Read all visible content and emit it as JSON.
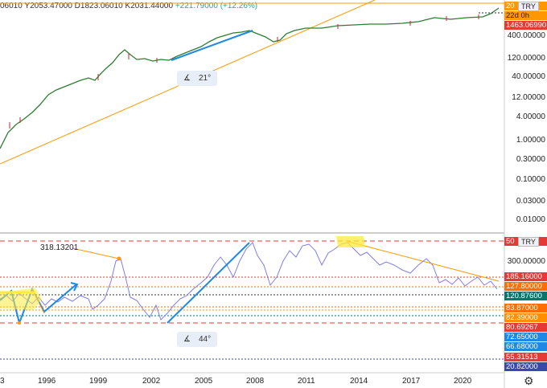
{
  "header": {
    "ohlc_text": "06010 Y2053.47000 D1823.06010 K2031.44000",
    "change_text": "+221.79000 (+12.26%)"
  },
  "price_axis": {
    "ticks": [
      "400.00000",
      "120.00000",
      "40.00000",
      "12.00000",
      "4.00000",
      "1.00000",
      "0.30000",
      "0.10000",
      "0.03000",
      "0.01000"
    ],
    "currency_button": "TRY",
    "top_badge": "20",
    "countdown_badge": "22d 0h",
    "last_price_badge": "1463.06990"
  },
  "indicator_axis": {
    "currency_button": "TRY",
    "top_badge": "50",
    "tick_300": "300.00000",
    "badges": [
      {
        "text": "185.16000",
        "color": "#e53935"
      },
      {
        "text": "127.80000",
        "color": "#ff6d00"
      },
      {
        "text": "120.87600",
        "color": "#00796b"
      },
      {
        "text": "83.87000",
        "color": "#ff6d00"
      },
      {
        "text": "82.39000",
        "color": "#ff8f00"
      },
      {
        "text": "80.69267",
        "color": "#e53935"
      },
      {
        "text": "72.65000",
        "color": "#1e88e5"
      },
      {
        "text": "66.68000",
        "color": "#1e88e5"
      },
      {
        "text": "55.31513",
        "color": "#e53935"
      },
      {
        "text": "20.82000",
        "color": "#3949ab"
      }
    ]
  },
  "annotations": {
    "peak_label": "318.13201",
    "angle_top": "21°",
    "angle_bottom": "44°"
  },
  "time_axis": [
    "3",
    "1996",
    "1999",
    "2002",
    "2005",
    "2008",
    "2011",
    "2014",
    "2017",
    "2020"
  ],
  "colors": {
    "price_line": "#2e7d32",
    "trend_orange": "#ff9800",
    "trend_blue": "#1e88e5",
    "indicator_line": "#7e7ee8",
    "highlight_yellow": "#ffeb3b"
  },
  "chart_data": {
    "type": "line",
    "series": [
      {
        "x": [
          1993,
          1996,
          1999,
          2001,
          2003,
          2006,
          2008,
          2009,
          2011,
          2014,
          2017,
          2020,
          2021
        ],
        "values": [
          0.15,
          0.8,
          20,
          120,
          180,
          250,
          440,
          380,
          420,
          520,
          540,
          560,
          1463.07
        ]
      }
    ],
    "indicator_series": {
      "x": [
        1993,
        1995,
        1997,
        1999,
        2000.5,
        2002,
        2003,
        2005,
        2007,
        2008,
        2009.5,
        2011,
        2013,
        2014,
        2017,
        2018,
        2020,
        2021
      ],
      "values": [
        130,
        95,
        140,
        110,
        318.13,
        95,
        80,
        150,
        260,
        400,
        160,
        360,
        420,
        340,
        330,
        150,
        170,
        125
      ]
    },
    "ylim": [
      0.01,
      2053.47
    ]
  }
}
